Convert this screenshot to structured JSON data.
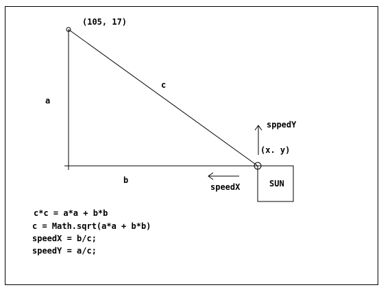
{
  "labels": {
    "top_point": "(105, 17)",
    "side_a": "a",
    "side_b": "b",
    "side_c": "c",
    "point_xy": "(x. y)",
    "speed_y": "sppedY",
    "speed_x": "speedX",
    "sun": "SUN"
  },
  "equations": [
    "c*c = a*a + b*b",
    "c = Math.sqrt(a*a + b*b)",
    "speedX = b/c;",
    "speedY = a/c;"
  ]
}
